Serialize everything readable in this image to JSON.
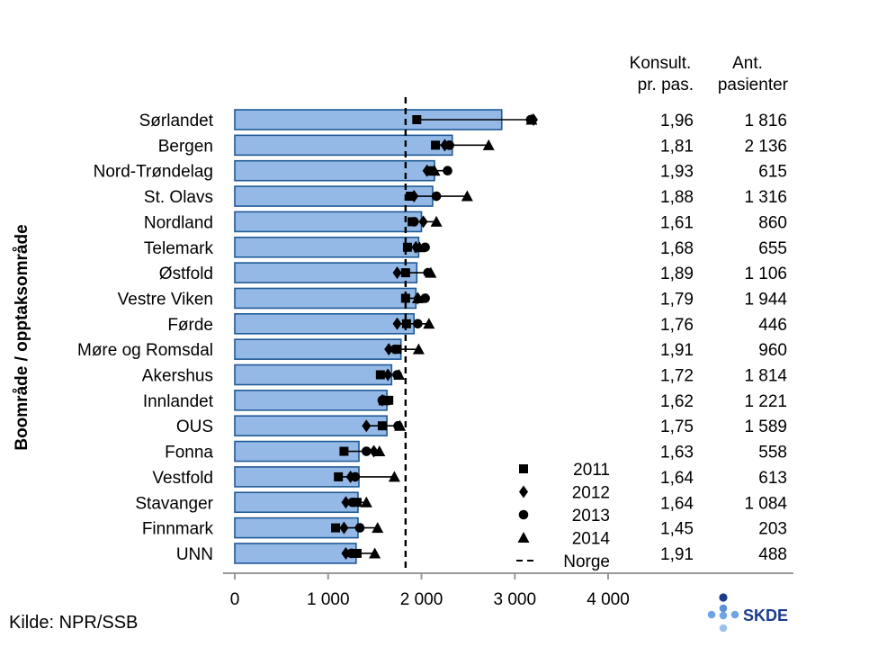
{
  "chart_data": {
    "type": "bar",
    "orientation": "horizontal",
    "ylabel": "Boområde / opptaksområde",
    "xlim": [
      0,
      4000
    ],
    "x_ticks": [
      0,
      1000,
      2000,
      3000,
      4000
    ],
    "x_tick_labels": [
      "0",
      "1 000",
      "2 000",
      "3 000",
      "4 000"
    ],
    "grid": false,
    "legend_position": "bottom-right",
    "bar_color": "#95B9E7",
    "bar_edge_color": "#1F5A96",
    "reference_line": {
      "name": "Norge",
      "value": 1830
    },
    "categories": [
      "Sørlandet",
      "Bergen",
      "Nord-Trøndelag",
      "St. Olavs",
      "Nordland",
      "Telemark",
      "Østfold",
      "Vestre Viken",
      "Førde",
      "Møre og Romsdal",
      "Akershus",
      "Innlandet",
      "OUS",
      "Fonna",
      "Vestfold",
      "Stavanger",
      "Finnmark",
      "UNN"
    ],
    "values": [
      2860,
      2330,
      2140,
      2120,
      2000,
      1970,
      1950,
      1940,
      1920,
      1780,
      1680,
      1630,
      1630,
      1330,
      1330,
      1320,
      1320,
      1300
    ],
    "series": [
      {
        "name": "2011",
        "marker": "square",
        "values": [
          1950,
          2150,
          2100,
          1880,
          1900,
          1850,
          1830,
          1830,
          1840,
          1740,
          1560,
          1650,
          1580,
          1170,
          1110,
          1310,
          1080,
          1310
        ]
      },
      {
        "name": "2012",
        "marker": "diamond",
        "values": [
          3200,
          2250,
          2060,
          1920,
          2020,
          1940,
          1740,
          1960,
          1740,
          1650,
          1640,
          1580,
          1410,
          1490,
          1240,
          1190,
          1170,
          1190
        ]
      },
      {
        "name": "2013",
        "marker": "circle",
        "values": [
          3170,
          2300,
          2280,
          2160,
          1920,
          2040,
          2070,
          2040,
          1960,
          1720,
          1740,
          1580,
          1750,
          1410,
          1290,
          1260,
          1340,
          1250
        ]
      },
      {
        "name": "2014",
        "marker": "triangle",
        "values": [
          3180,
          2720,
          2140,
          2490,
          2160,
          1980,
          2100,
          1960,
          2080,
          1970,
          1760,
          1600,
          1770,
          1550,
          1710,
          1410,
          1530,
          1500
        ]
      }
    ],
    "table": {
      "headers": [
        [
          "Konsult.",
          "pr. pas."
        ],
        [
          "Ant.",
          "pasienter"
        ]
      ],
      "rows": [
        [
          "1,96",
          "1 816"
        ],
        [
          "1,81",
          "2 136"
        ],
        [
          "1,93",
          "615"
        ],
        [
          "1,88",
          "1 316"
        ],
        [
          "1,61",
          "860"
        ],
        [
          "1,68",
          "655"
        ],
        [
          "1,89",
          "1 106"
        ],
        [
          "1,79",
          "1 944"
        ],
        [
          "1,76",
          "446"
        ],
        [
          "1,91",
          "960"
        ],
        [
          "1,72",
          "1 814"
        ],
        [
          "1,62",
          "1 221"
        ],
        [
          "1,75",
          "1 589"
        ],
        [
          "1,63",
          "558"
        ],
        [
          "1,64",
          "613"
        ],
        [
          "1,64",
          "1 084"
        ],
        [
          "1,45",
          "203"
        ],
        [
          "1,91",
          "488"
        ]
      ]
    }
  },
  "footer": {
    "source": "Kilde: NPR/SSB",
    "logo_text": "SKDE"
  }
}
